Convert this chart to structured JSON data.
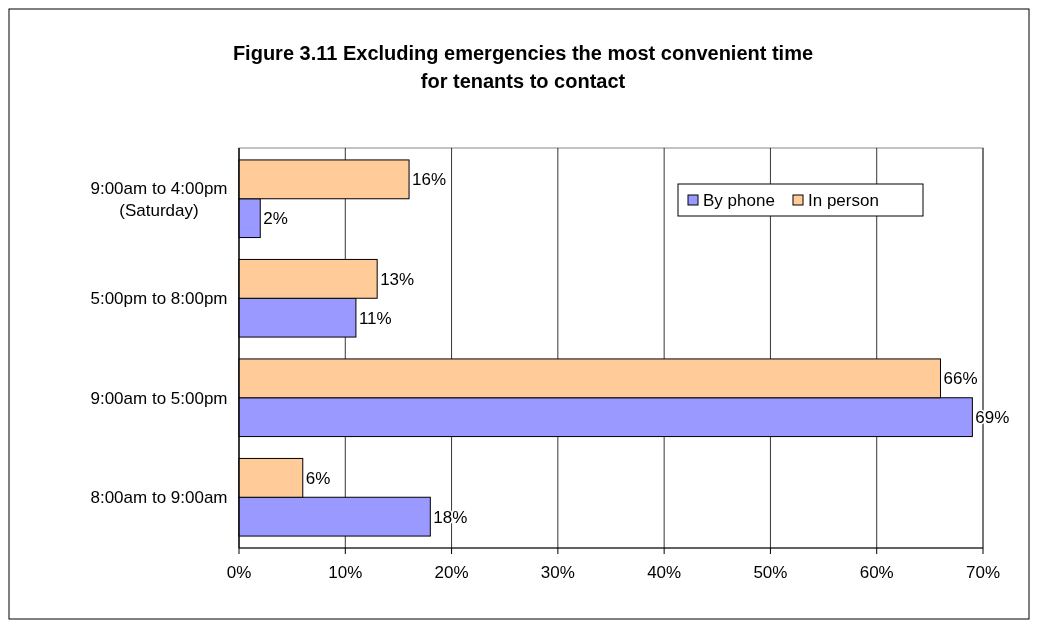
{
  "chart_data": {
    "type": "bar",
    "orientation": "horizontal",
    "title": "Figure 3.11  Excluding emergencies the most convenient time for tenants to contact",
    "categories": [
      "9:00am to 4:00pm (Saturday)",
      "5:00pm to 8:00pm",
      "9:00am to 5:00pm",
      "8:00am to 9:00am"
    ],
    "series": [
      {
        "name": "By phone",
        "color": "#9999ff",
        "values": [
          2,
          11,
          69,
          18
        ],
        "value_labels": [
          "2%",
          "11%",
          "69%",
          "18%"
        ]
      },
      {
        "name": "In person",
        "color": "#ffcc99",
        "values": [
          16,
          13,
          66,
          6
        ],
        "value_labels": [
          "16%",
          "13%",
          "66%",
          "6%"
        ]
      }
    ],
    "xlim": [
      0,
      70
    ],
    "xticks": [
      {
        "value": 0,
        "label": "0%"
      },
      {
        "value": 10,
        "label": "10%"
      },
      {
        "value": 20,
        "label": "20%"
      },
      {
        "value": 30,
        "label": "30%"
      },
      {
        "value": 40,
        "label": "40%"
      },
      {
        "value": 50,
        "label": "50%"
      },
      {
        "value": 60,
        "label": "60%"
      },
      {
        "value": 70,
        "label": "70%"
      }
    ],
    "grid": "x",
    "legend": "top right"
  }
}
